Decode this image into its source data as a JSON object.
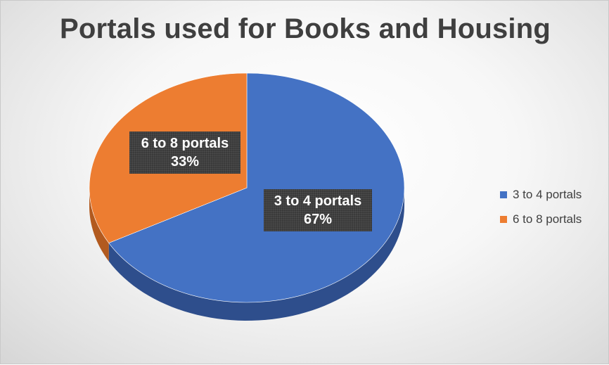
{
  "chart_data": {
    "type": "pie",
    "title": "Portals used for Books and Housing",
    "categories": [
      "3 to 4 portals",
      "6 to 8 portals"
    ],
    "values": [
      67,
      33
    ],
    "value_suffix": "%",
    "colors": [
      "#4472C4",
      "#ED7D31"
    ],
    "side_colors": [
      "#2E4E8C",
      "#B25A1F"
    ],
    "legend_position": "right",
    "style": "3d"
  }
}
